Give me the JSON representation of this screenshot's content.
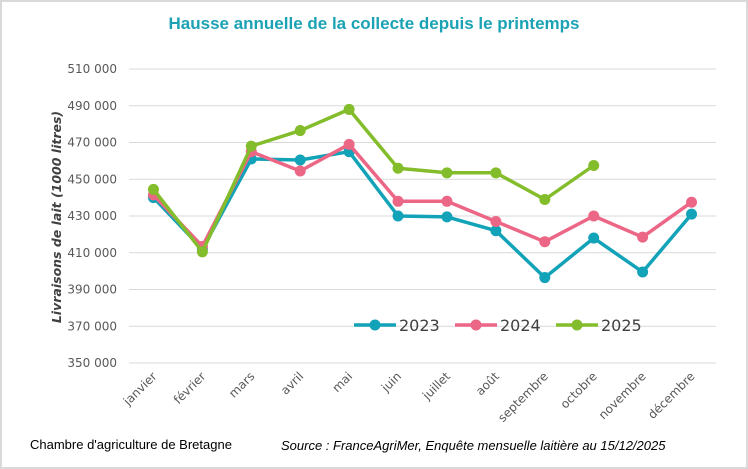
{
  "chart_data": {
    "type": "line",
    "title": "Hausse annuelle de la collecte depuis le printemps",
    "xlabel": "",
    "ylabel": "Livraisons de lait (1000 litres)",
    "categories": [
      "janvier",
      "février",
      "mars",
      "avril",
      "mai",
      "juin",
      "juillet",
      "août",
      "septembre",
      "octobre",
      "novembre",
      "décembre"
    ],
    "ylim": [
      350000,
      510000
    ],
    "yticks": [
      350000,
      370000,
      390000,
      410000,
      430000,
      450000,
      470000,
      490000,
      510000
    ],
    "ytick_labels": [
      "350 000",
      "370 000",
      "390 000",
      "410 000",
      "430 000",
      "450 000",
      "470 000",
      "490 000",
      "510 000"
    ],
    "grid": true,
    "legend_position": "bottom-right inside plot",
    "series": [
      {
        "name": "2023",
        "color": "#13a3b8",
        "values": [
          440000,
          412000,
          461000,
          460500,
          465000,
          430000,
          429500,
          422000,
          396500,
          418000,
          399500,
          431000
        ]
      },
      {
        "name": "2024",
        "color": "#ec6685",
        "values": [
          441500,
          413500,
          465000,
          454500,
          469000,
          438000,
          438000,
          427000,
          416000,
          430000,
          418500,
          437500
        ]
      },
      {
        "name": "2025",
        "color": "#84bd2b",
        "values": [
          444500,
          410500,
          468000,
          476500,
          488000,
          456000,
          453500,
          453500,
          439000,
          457500,
          null,
          null
        ]
      }
    ]
  },
  "footer": {
    "organization": "Chambre d'agriculture de Bretagne",
    "source": "Source : FranceAgriMer, Enquête mensuelle laitière au 15/12/2025"
  }
}
